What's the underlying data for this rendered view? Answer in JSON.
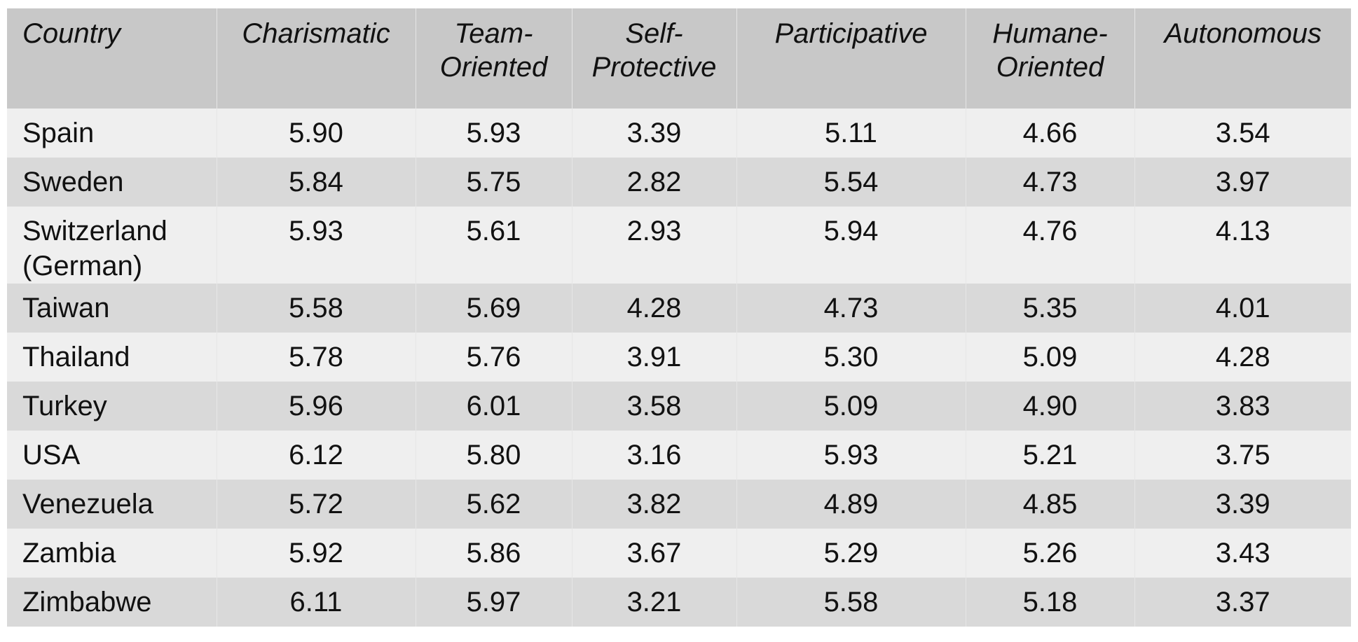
{
  "table": {
    "header": [
      "Country",
      "Charismatic",
      "Team-\nOriented",
      "Self-\nProtective",
      "Participative",
      "Humane-\nOriented",
      "Autonomous"
    ],
    "rows": [
      [
        "Spain",
        "5.90",
        "5.93",
        "3.39",
        "5.11",
        "4.66",
        "3.54"
      ],
      [
        "Sweden",
        "5.84",
        "5.75",
        "2.82",
        "5.54",
        "4.73",
        "3.97"
      ],
      [
        "Switzerland (German)",
        "5.93",
        "5.61",
        "2.93",
        "5.94",
        "4.76",
        "4.13"
      ],
      [
        "Taiwan",
        "5.58",
        "5.69",
        "4.28",
        "4.73",
        "5.35",
        "4.01"
      ],
      [
        "Thailand",
        "5.78",
        "5.76",
        "3.91",
        "5.30",
        "5.09",
        "4.28"
      ],
      [
        "Turkey",
        "5.96",
        "6.01",
        "3.58",
        "5.09",
        "4.90",
        "3.83"
      ],
      [
        "USA",
        "6.12",
        "5.80",
        "3.16",
        "5.93",
        "5.21",
        "3.75"
      ],
      [
        "Venezuela",
        "5.72",
        "5.62",
        "3.82",
        "4.89",
        "4.85",
        "3.39"
      ],
      [
        "Zambia",
        "5.92",
        "5.86",
        "3.67",
        "5.29",
        "5.26",
        "3.43"
      ],
      [
        "Zimbabwe",
        "6.11",
        "5.97",
        "3.21",
        "5.58",
        "5.18",
        "3.37"
      ]
    ]
  }
}
